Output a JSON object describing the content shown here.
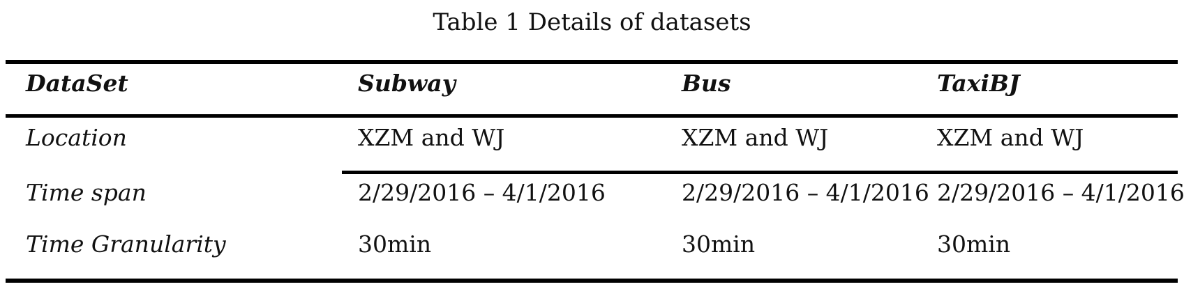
{
  "caption": "Table 1 Details of datasets",
  "table": {
    "headers": [
      "DataSet",
      "Subway",
      "Bus",
      "TaxiBJ"
    ],
    "rows": [
      [
        "Location",
        "XZM and WJ",
        "XZM and WJ",
        "XZM and WJ"
      ],
      [
        "Time span",
        "2/29/2016 – 4/1/2016",
        "2/29/2016 – 4/1/2016",
        "2/29/2016 – 4/1/2016"
      ],
      [
        "Time Granularity",
        "30min",
        "30min",
        "30min"
      ]
    ]
  }
}
